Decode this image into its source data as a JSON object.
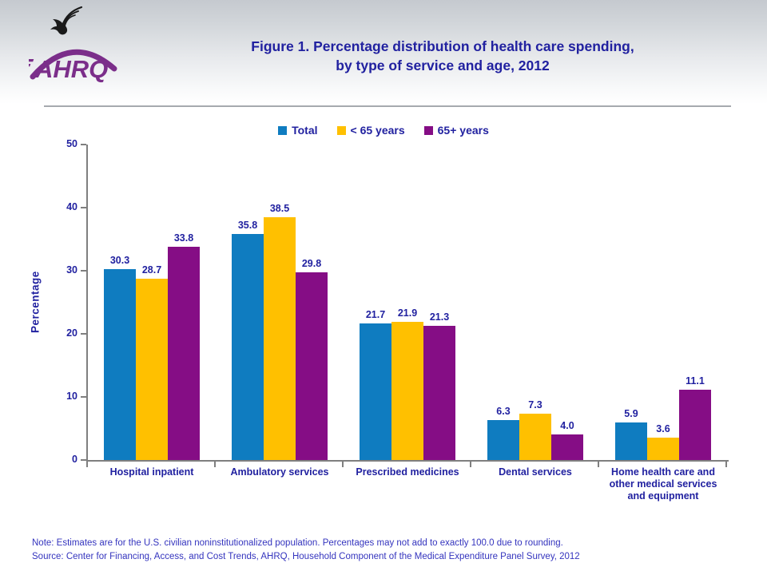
{
  "header": {
    "title_line1": "Figure 1. Percentage distribution of health care spending,",
    "title_line2": "by type of service and age, 2012",
    "logo_text": "AHRQ"
  },
  "legend": {
    "items": [
      {
        "label": "Total",
        "color": "#0f7cc0"
      },
      {
        "label": "< 65 years",
        "color": "#ffc000"
      },
      {
        "label": "65+ years",
        "color": "#850d85"
      }
    ]
  },
  "chart_data": {
    "type": "bar",
    "title": "Figure 1. Percentage distribution of health care spending, by type of service and age, 2012",
    "xlabel": "",
    "ylabel": "Percentage",
    "ylim": [
      0,
      50
    ],
    "yticks": [
      0,
      10,
      20,
      30,
      40,
      50
    ],
    "grid": false,
    "legend_position": "top",
    "categories": [
      "Hospital inpatient",
      "Ambulatory services",
      "Prescribed medicines",
      "Dental services",
      "Home health care and other medical services and equipment"
    ],
    "series": [
      {
        "name": "Total",
        "color": "#0f7cc0",
        "values": [
          30.3,
          35.8,
          21.7,
          6.3,
          5.9
        ]
      },
      {
        "name": "< 65 years",
        "color": "#ffc000",
        "values": [
          28.7,
          38.5,
          21.9,
          7.3,
          3.6
        ]
      },
      {
        "name": "65+ years",
        "color": "#850d85",
        "values": [
          33.8,
          29.8,
          21.3,
          4.0,
          11.1
        ]
      }
    ]
  },
  "notes": {
    "note": "Note: Estimates are for the U.S. civilian noninstitutionalized population. Percentages may not add to exactly 100.0 due to rounding.",
    "source": "Source: Center for Financing, Access, and Cost Trends, AHRQ, Household Component of the Medical Expenditure Panel Survey, 2012"
  },
  "colors": {
    "title_text": "#2121a0",
    "axis": "#7f7f7f",
    "note_text": "#3434be",
    "logo_purple": "#7b2e8a",
    "header_gradient_top": "#c5c9cf",
    "divider": "#a6aaae"
  }
}
